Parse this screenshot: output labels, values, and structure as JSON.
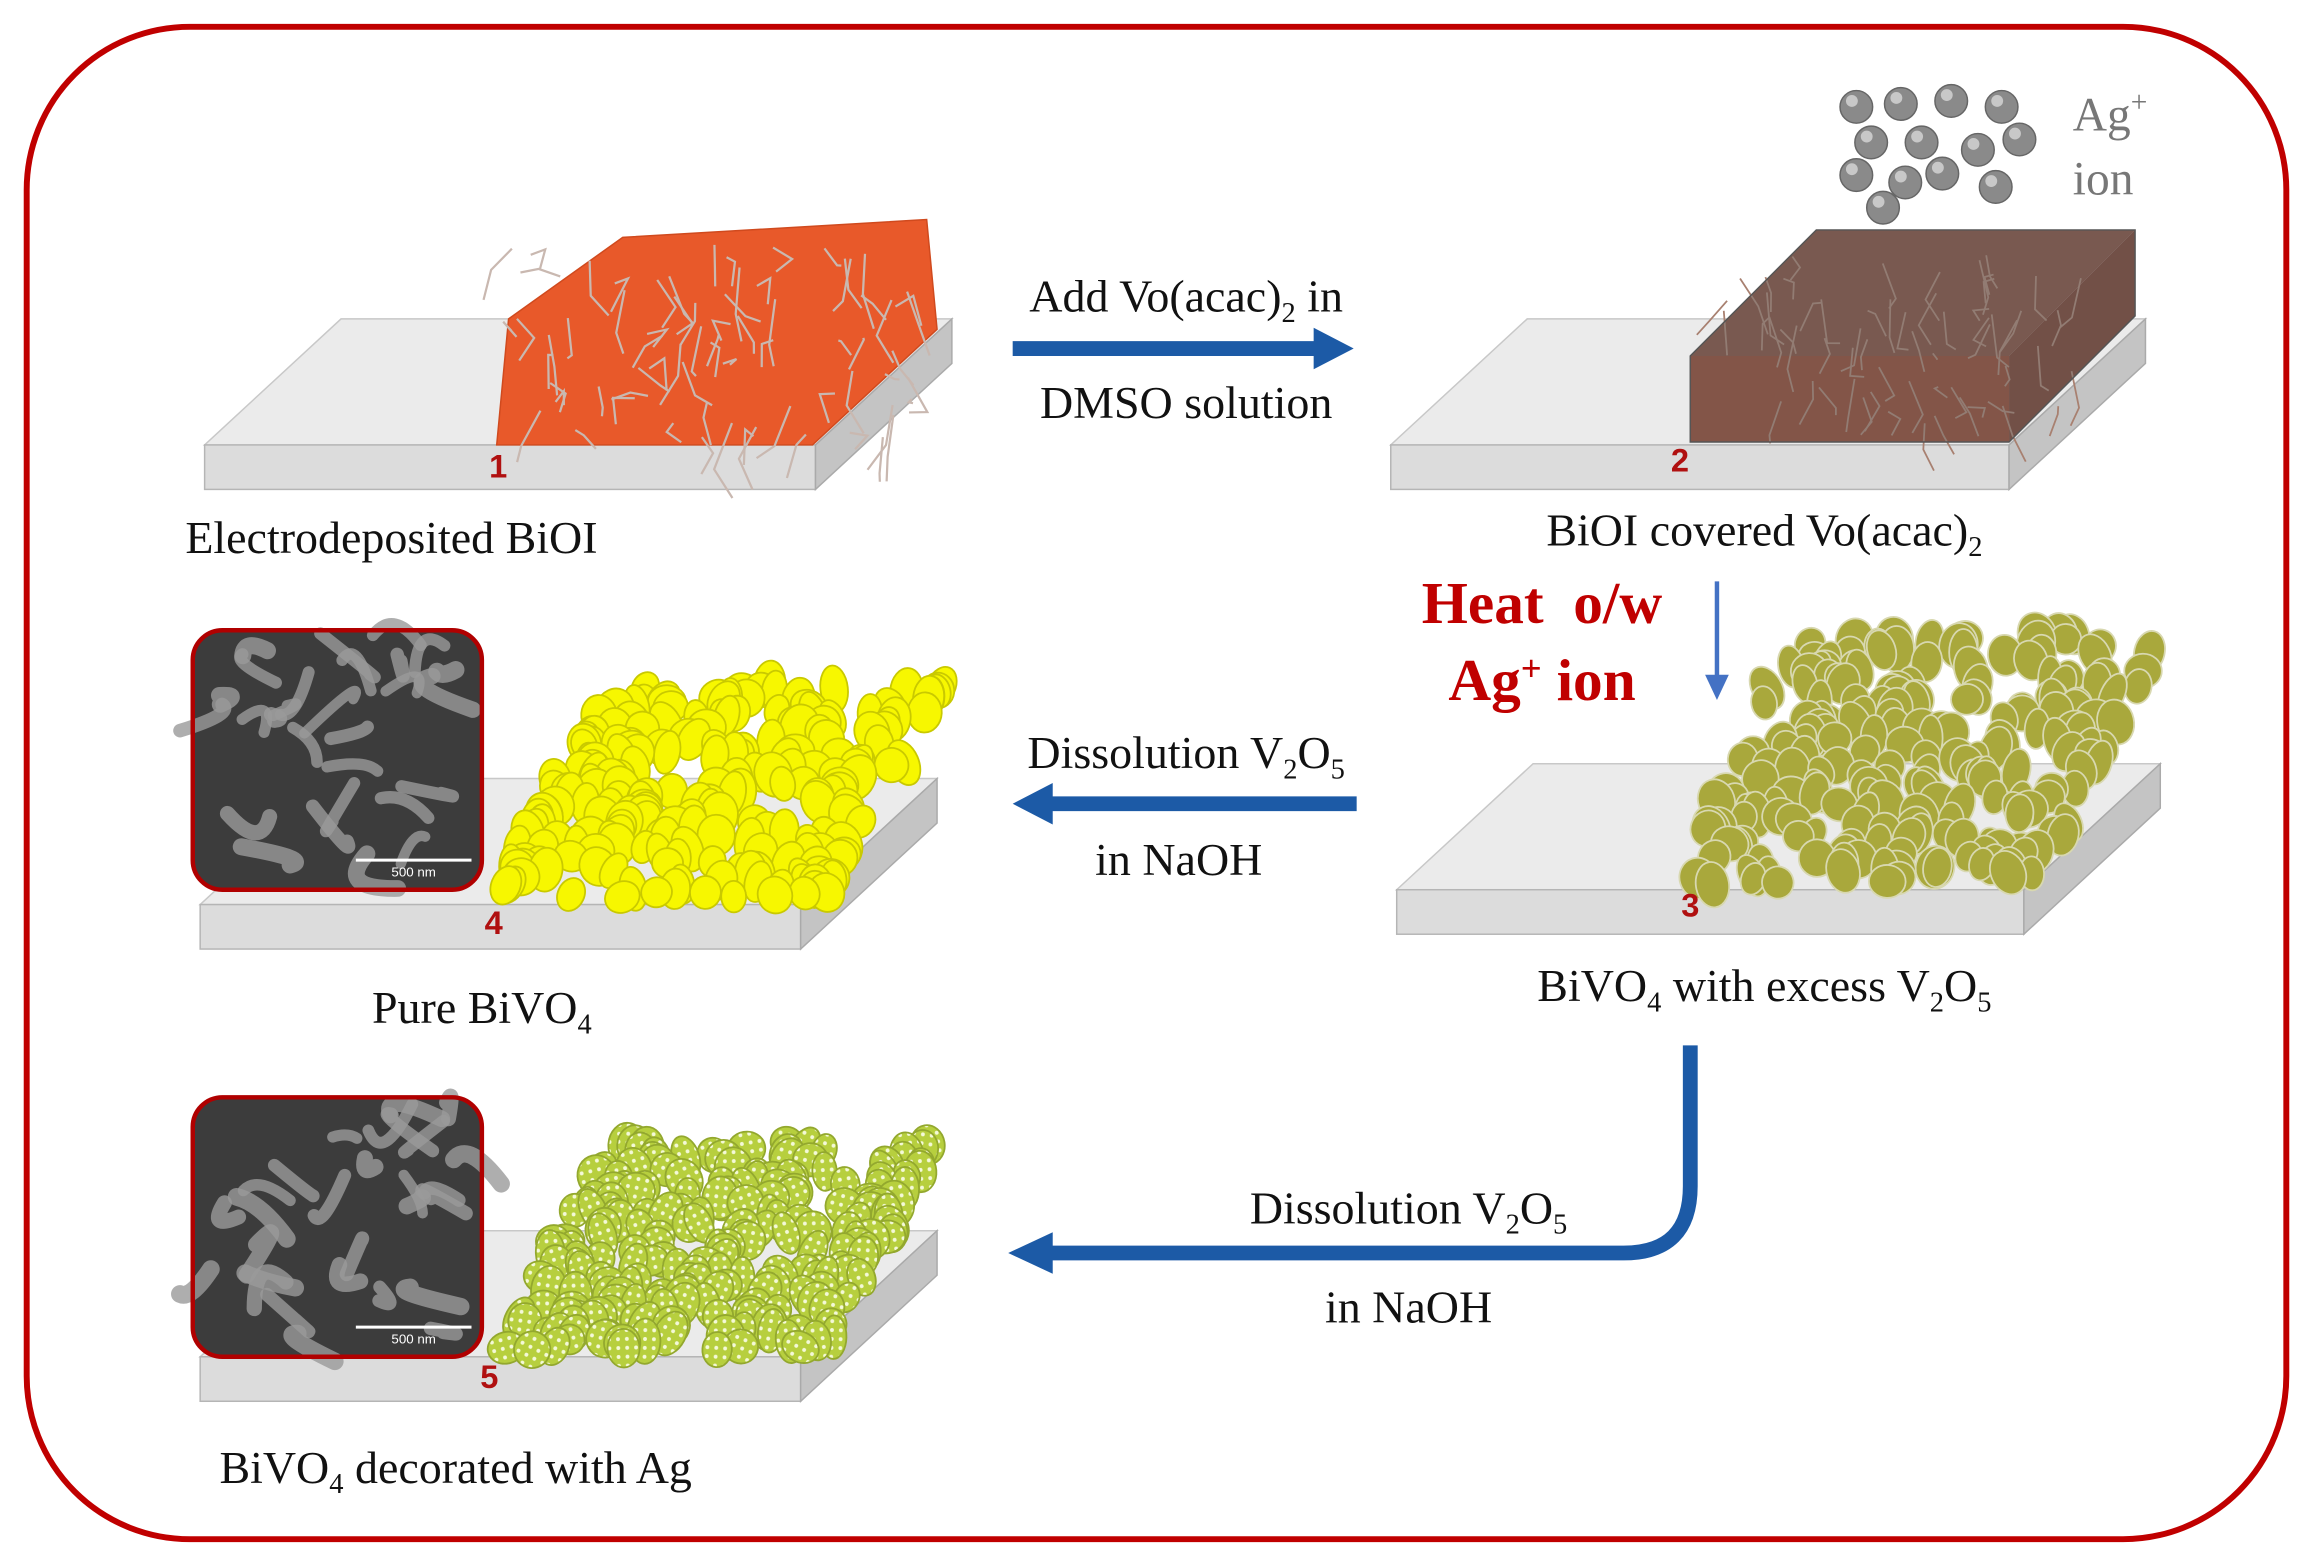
{
  "steps": [
    {
      "number": "1",
      "caption": [
        "Electrodeposited BiOI"
      ]
    },
    {
      "number": "2",
      "caption": [
        "BiOI covered Vo(acac)",
        {
          "sub": "2"
        }
      ]
    },
    {
      "number": "3",
      "caption": [
        "BiVO",
        {
          "sub": "4"
        },
        " with excess V",
        {
          "sub": "2"
        },
        "O",
        {
          "sub": "5"
        }
      ]
    },
    {
      "number": "4",
      "caption": [
        "Pure BiVO",
        {
          "sub": "4"
        }
      ],
      "scale_bar": "500 nm"
    },
    {
      "number": "5",
      "caption": [
        "BiVO",
        {
          "sub": "4"
        },
        " decorated with Ag"
      ],
      "scale_bar": "500 nm"
    }
  ],
  "ion_label": {
    "line1": [
      "Ag",
      {
        "sup": "+"
      }
    ],
    "line2": [
      "ion"
    ]
  },
  "arrows": [
    {
      "line1": [
        "Add Vo(acac)",
        {
          "sub": "2"
        },
        " in"
      ],
      "line2": [
        "DMSO solution"
      ]
    },
    {
      "line1": [
        "Heat  o/w"
      ],
      "line2": [
        "Ag",
        {
          "sup": "+"
        },
        " ion"
      ]
    },
    {
      "line1": [
        "Dissolution V",
        {
          "sub": "2"
        },
        "O",
        {
          "sub": "5"
        }
      ],
      "line2": [
        "in NaOH"
      ]
    },
    {
      "line1": [
        "Dissolution V",
        {
          "sub": "2"
        },
        "O",
        {
          "sub": "5"
        }
      ],
      "line2": [
        "in NaOH"
      ]
    }
  ]
}
